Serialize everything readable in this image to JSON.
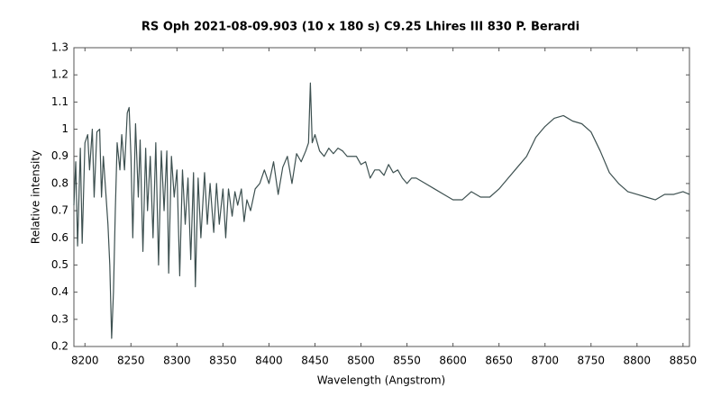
{
  "chart_data": {
    "type": "line",
    "title": "RS Oph  2021-08-09.903  (10 x 180 s)  C9.25  Lhires III 830  P. Berardi",
    "x_label": "Wavelength (Angstrom)",
    "y_label": "Relative intensity",
    "xlim": [
      8188,
      8857
    ],
    "ylim": [
      0.2,
      1.3
    ],
    "xticks": [
      8200,
      8250,
      8300,
      8350,
      8400,
      8450,
      8500,
      8550,
      8600,
      8650,
      8700,
      8750,
      8800,
      8850
    ],
    "yticks": [
      0.2,
      0.3,
      0.4,
      0.5,
      0.6,
      0.7,
      0.8,
      0.9,
      1,
      1.1,
      1.2,
      1.3
    ],
    "grid": false,
    "series": [
      {
        "color": "#3d5050",
        "x": [
          8188,
          8190,
          8192,
          8195,
          8197,
          8200,
          8203,
          8205,
          8208,
          8210,
          8213,
          8216,
          8218,
          8220,
          8222,
          8225,
          8227,
          8229,
          8231,
          8233,
          8235,
          8238,
          8240,
          8243,
          8246,
          8248,
          8250,
          8252,
          8255,
          8258,
          8260,
          8263,
          8266,
          8268,
          8271,
          8274,
          8277,
          8280,
          8283,
          8286,
          8289,
          8291,
          8294,
          8297,
          8300,
          8303,
          8306,
          8309,
          8312,
          8315,
          8318,
          8320,
          8323,
          8326,
          8330,
          8333,
          8336,
          8340,
          8343,
          8346,
          8350,
          8353,
          8356,
          8360,
          8363,
          8366,
          8370,
          8373,
          8376,
          8380,
          8385,
          8390,
          8395,
          8400,
          8405,
          8410,
          8415,
          8420,
          8425,
          8430,
          8435,
          8440,
          8443,
          8445,
          8447,
          8450,
          8455,
          8460,
          8465,
          8470,
          8475,
          8480,
          8485,
          8490,
          8495,
          8500,
          8505,
          8510,
          8515,
          8520,
          8525,
          8530,
          8535,
          8540,
          8545,
          8550,
          8555,
          8560,
          8570,
          8580,
          8590,
          8600,
          8610,
          8620,
          8630,
          8640,
          8650,
          8660,
          8670,
          8680,
          8690,
          8700,
          8710,
          8720,
          8730,
          8740,
          8750,
          8760,
          8770,
          8780,
          8790,
          8800,
          8810,
          8820,
          8830,
          8840,
          8850,
          8857
        ],
        "values": [
          0.72,
          0.88,
          0.57,
          0.93,
          0.58,
          0.95,
          0.98,
          0.85,
          1.0,
          0.75,
          0.99,
          1.0,
          0.75,
          0.9,
          0.8,
          0.65,
          0.5,
          0.23,
          0.4,
          0.7,
          0.95,
          0.85,
          0.98,
          0.85,
          1.06,
          1.08,
          0.9,
          0.6,
          1.02,
          0.75,
          0.96,
          0.55,
          0.93,
          0.7,
          0.9,
          0.6,
          0.95,
          0.5,
          0.92,
          0.7,
          0.92,
          0.47,
          0.9,
          0.75,
          0.85,
          0.46,
          0.85,
          0.65,
          0.82,
          0.52,
          0.84,
          0.42,
          0.82,
          0.6,
          0.84,
          0.65,
          0.8,
          0.62,
          0.8,
          0.65,
          0.78,
          0.6,
          0.78,
          0.68,
          0.77,
          0.72,
          0.78,
          0.66,
          0.74,
          0.7,
          0.78,
          0.8,
          0.85,
          0.8,
          0.88,
          0.76,
          0.86,
          0.9,
          0.8,
          0.91,
          0.88,
          0.92,
          0.95,
          1.17,
          0.95,
          0.98,
          0.92,
          0.9,
          0.93,
          0.91,
          0.93,
          0.92,
          0.9,
          0.9,
          0.9,
          0.87,
          0.88,
          0.82,
          0.85,
          0.85,
          0.83,
          0.87,
          0.84,
          0.85,
          0.82,
          0.8,
          0.82,
          0.82,
          0.8,
          0.78,
          0.76,
          0.74,
          0.74,
          0.77,
          0.75,
          0.75,
          0.78,
          0.82,
          0.86,
          0.9,
          0.97,
          1.01,
          1.04,
          1.05,
          1.03,
          1.02,
          0.99,
          0.92,
          0.84,
          0.8,
          0.77,
          0.76,
          0.75,
          0.74,
          0.76,
          0.76,
          0.77,
          0.76
        ]
      }
    ]
  }
}
